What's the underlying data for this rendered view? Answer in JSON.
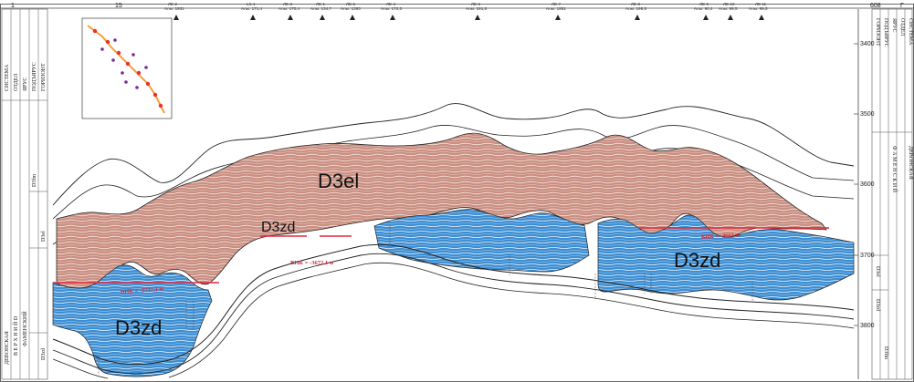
{
  "corners": {
    "left": "Г",
    "right": "Г",
    "top_left_index": "1",
    "top_right_index": "608"
  },
  "wells": [
    {
      "id": "15",
      "alt": ""
    },
    {
      "id": "ЛЕ-2",
      "alt": "Альт. 1931"
    },
    {
      "id": "LS-1",
      "alt": "Альт. 171,4"
    },
    {
      "id": "ЛЕ-3",
      "alt": "Альт. 170,4"
    },
    {
      "id": "ЛЕ-1",
      "alt": "Альт. 134,7"
    },
    {
      "id": "ЛЕ-5",
      "alt": "Альт. 1393"
    },
    {
      "id": "ЛЕ-4",
      "alt": "Альт. 172,5"
    },
    {
      "id": "ЛЕ-6",
      "alt": "Альт. 191,8"
    },
    {
      "id": "ЛЕ-7",
      "alt": "Альт. 1951"
    },
    {
      "id": "ЛЕ-8",
      "alt": "Альт. 198,5"
    },
    {
      "id": "ЛЕ-9",
      "alt": "Альт. 90,4"
    },
    {
      "id": "ЛЕ-10",
      "alt": "Альт. 99,5"
    },
    {
      "id": "ЛЕ-11",
      "alt": "Альт. 99,5"
    }
  ],
  "depth_scale": {
    "ticks": [
      "3400",
      "3500",
      "3600",
      "3700",
      "3800"
    ]
  },
  "left_column": {
    "headers": [
      "СИСТЕМА",
      "ОТДЕЛ",
      "ЯРУС",
      "ПОДЪЯРУС",
      "ГОРИЗОНТ"
    ],
    "system": "ДЕВОНСКАЯ",
    "section": "В Е Р Х Н И Й   D",
    "stages": [
      "ФАМЕНСКИЙ",
      "D3fm",
      "D3el",
      "D3zd"
    ]
  },
  "right_column": {
    "headers": [
      "СИСТЕМА",
      "ОТДЕЛ",
      "ЯРУС",
      "ПОДЪЯРУС",
      "ГОРИЗОНТ"
    ],
    "system": "ДЕВОНСКАЯ",
    "section": "Ф А М Е Н С К И Й",
    "stages": [
      "D3el",
      "D3zd",
      "D3fm"
    ]
  },
  "labels": {
    "d3el": "D3el",
    "d3zd_mid": "D3zd",
    "d3zd_left": "D3zd",
    "d3zd_right": "D3zd",
    "vnk_left": "ВНК = -3737,1 м",
    "vnk_mid": "ВНК = -3672,1 м",
    "vnk_right": "ВНК = -3661 м"
  },
  "colors": {
    "oil": "#c99083",
    "water": "#3f8fd2",
    "contact": "#e0283c",
    "boundary": "#222222"
  }
}
